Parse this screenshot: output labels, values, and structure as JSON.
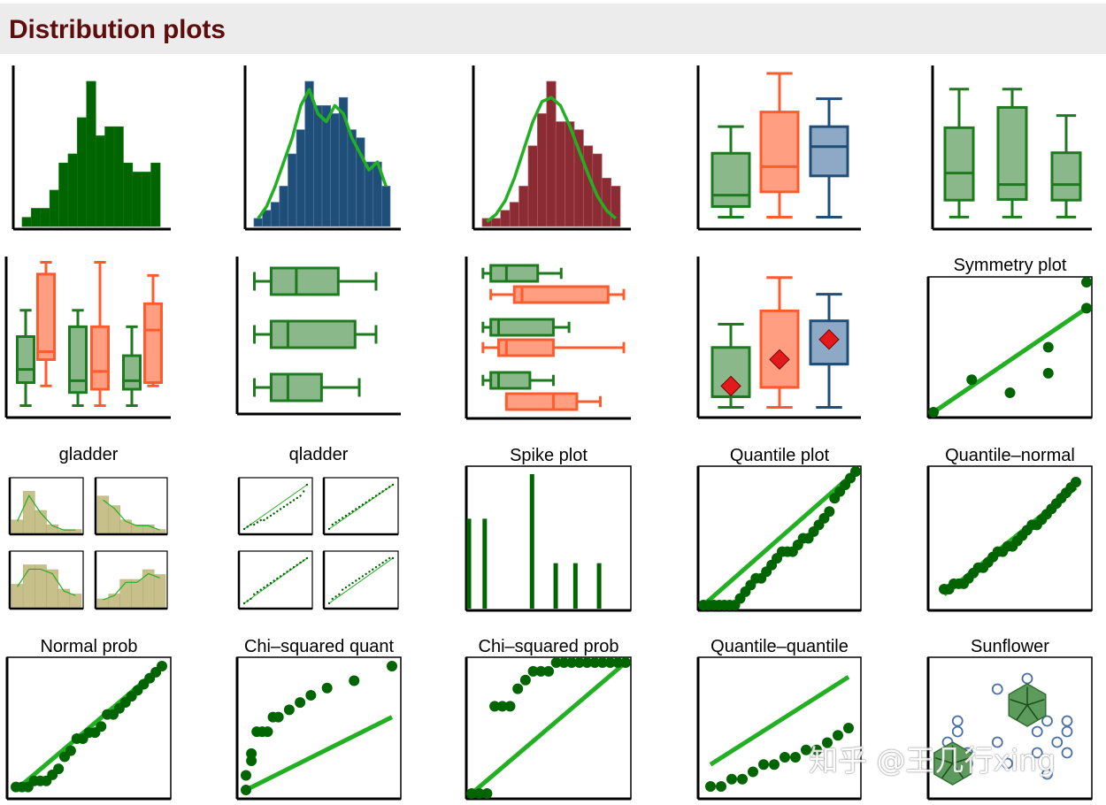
{
  "header": {
    "title": "Distribution plots"
  },
  "watermark": "知乎 @王几行xing",
  "colors": {
    "green": "#006400",
    "bright_green": "#22b022",
    "light_green": "#8ab88a",
    "orange": "#ff5c2e",
    "light_orange": "#ff9e80",
    "blue": "#2d5a87",
    "light_blue": "#8ea9c6",
    "navy": "#1f4e79",
    "maroon": "#8b2c35",
    "khaki": "#c8c08a",
    "diamond": "#e31a1c"
  },
  "chart_data": [
    {
      "id": "histogram",
      "type": "bar",
      "title": "",
      "values": [
        1,
        2,
        2,
        4,
        7,
        8,
        12,
        16,
        10,
        11,
        11,
        7,
        6,
        6,
        7
      ]
    },
    {
      "id": "histogram-kdensity",
      "type": "bar",
      "title": "",
      "values": [
        1,
        2,
        3,
        5,
        9,
        12,
        18,
        15,
        15,
        14,
        16,
        12,
        11,
        8,
        8,
        5
      ],
      "density": [
        1,
        2.5,
        5,
        8,
        11,
        15,
        17,
        14,
        13,
        15,
        14,
        11,
        9,
        7,
        8,
        5
      ]
    },
    {
      "id": "histogram-normal",
      "type": "bar",
      "title": "",
      "values": [
        1,
        1,
        2,
        3,
        5,
        10,
        14,
        18,
        13,
        13,
        12,
        10,
        9,
        6,
        5
      ],
      "density": [
        0.6,
        1.5,
        3.2,
        6,
        9.5,
        13,
        15.5,
        16,
        15,
        12.5,
        9.5,
        6.5,
        3.8,
        2,
        1
      ]
    },
    {
      "id": "box-3",
      "type": "box",
      "title": "",
      "boxes": [
        {
          "color": "green",
          "min": 1,
          "q1": 2.6,
          "med": 4.3,
          "q3": 10.6,
          "max": 14.6
        },
        {
          "color": "orange",
          "min": 1,
          "q1": 4.8,
          "med": 8.6,
          "q3": 16.8,
          "max": 22.6
        },
        {
          "color": "blue",
          "min": 1,
          "q1": 7.2,
          "med": 11.6,
          "q3": 14.6,
          "max": 18.8
        }
      ]
    },
    {
      "id": "box-3-green",
      "type": "box",
      "title": "",
      "boxes": [
        {
          "color": "green",
          "min": 1,
          "q1": 3.5,
          "med": 7.5,
          "q3": 14.2,
          "max": 19.9
        },
        {
          "color": "green",
          "min": 1,
          "q1": 3.6,
          "med": 5.8,
          "q3": 17.2,
          "max": 19.9
        },
        {
          "color": "green",
          "min": 1,
          "q1": 3.5,
          "med": 5.8,
          "q3": 10.5,
          "max": 16
        }
      ]
    },
    {
      "id": "box-grouped",
      "type": "box",
      "title": "",
      "boxes": [
        {
          "color": "green",
          "min": 1,
          "q1": 4.5,
          "med": 6.5,
          "q3": 11.5,
          "max": 15.5
        },
        {
          "color": "orange",
          "min": 4,
          "q1": 8,
          "med": 9.2,
          "q3": 21,
          "max": 22.8
        },
        {
          "color": "green",
          "min": 1,
          "q1": 3,
          "med": 4.8,
          "q3": 13,
          "max": 15.5
        },
        {
          "color": "orange",
          "min": 1,
          "q1": 3.5,
          "med": 6.2,
          "q3": 13,
          "max": 22.8
        },
        {
          "color": "green",
          "min": 1,
          "q1": 3.5,
          "med": 4.8,
          "q3": 8.6,
          "max": 13
        },
        {
          "color": "orange",
          "min": 4,
          "q1": 4.5,
          "med": 12.5,
          "q3": 16.5,
          "max": 20.8
        }
      ]
    },
    {
      "id": "hbox-3",
      "type": "box",
      "orientation": "horizontal",
      "title": "",
      "boxes": [
        {
          "color": "green",
          "min": 1,
          "q1": 3,
          "med": 6,
          "q3": 11,
          "max": 15.5
        },
        {
          "color": "green",
          "min": 1,
          "q1": 3,
          "med": 5,
          "q3": 13,
          "max": 15.5
        },
        {
          "color": "green",
          "min": 1,
          "q1": 3,
          "med": 5,
          "q3": 9,
          "max": 13.5
        }
      ]
    },
    {
      "id": "hbox-grouped",
      "type": "box",
      "orientation": "horizontal",
      "title": "",
      "boxes": [
        {
          "color": "green",
          "min": 1,
          "q1": 2,
          "med": 4,
          "q3": 8,
          "max": 11
        },
        {
          "color": "orange",
          "min": 2,
          "q1": 5,
          "med": 6,
          "q3": 17,
          "max": 19
        },
        {
          "color": "green",
          "min": 1,
          "q1": 2,
          "med": 3,
          "q3": 10,
          "max": 12
        },
        {
          "color": "orange",
          "min": 1,
          "q1": 3,
          "med": 4,
          "q3": 10,
          "max": 19
        },
        {
          "color": "green",
          "min": 1,
          "q1": 2,
          "med": 3,
          "q3": 7,
          "max": 10
        },
        {
          "color": "orange",
          "min": 4,
          "q1": 4,
          "med": 10,
          "q3": 13,
          "max": 16
        }
      ]
    },
    {
      "id": "box-means",
      "type": "box",
      "title": "",
      "boxes": [
        {
          "color": "green",
          "min": 1,
          "q1": 2.6,
          "med": 2.6,
          "q3": 10,
          "max": 13.5,
          "mean": 4.2
        },
        {
          "color": "orange",
          "min": 1,
          "q1": 4,
          "med": 4,
          "q3": 15.5,
          "max": 20.5,
          "mean": 8.2
        },
        {
          "color": "blue",
          "min": 1,
          "q1": 7.5,
          "med": 7.5,
          "q3": 14,
          "max": 18,
          "mean": 11.2
        }
      ]
    },
    {
      "id": "symmetry",
      "type": "scatter",
      "title": "Symmetry plot",
      "points": [
        [
          0,
          0
        ],
        [
          4,
          5
        ],
        [
          8,
          3
        ],
        [
          12,
          6
        ],
        [
          12,
          10
        ],
        [
          16,
          16
        ],
        [
          16,
          20
        ]
      ],
      "line": [
        [
          0,
          0
        ],
        [
          16,
          16
        ]
      ]
    },
    {
      "id": "gladder",
      "type": "bar",
      "title": "gladder",
      "panels": [
        {
          "values": [
            3,
            9,
            5,
            2,
            1,
            1
          ]
        },
        {
          "values": [
            8,
            6,
            3,
            2,
            2,
            1
          ]
        },
        {
          "values": [
            5,
            9,
            9,
            8,
            4,
            3
          ]
        },
        {
          "values": [
            2,
            3,
            6,
            6,
            8,
            7
          ]
        }
      ]
    },
    {
      "id": "qladder",
      "type": "scatter",
      "title": "qladder",
      "panels": [
        {
          "y": [
            0,
            0.5,
            1,
            1,
            1.5,
            2,
            2,
            2.5,
            3,
            3.5,
            4,
            4.5,
            5,
            5.5,
            6,
            6.5,
            7,
            7.5,
            8.5,
            10
          ]
        },
        {
          "y": [
            0,
            1,
            1.5,
            2,
            2.5,
            3,
            3.5,
            4,
            4.5,
            5,
            5.5,
            6,
            6.5,
            7,
            7.5,
            8,
            8.5,
            9,
            9.5,
            10
          ]
        },
        {
          "y": [
            0,
            0.5,
            1,
            2,
            2.5,
            3,
            3.5,
            4,
            4.5,
            5,
            5.5,
            6,
            6.5,
            7,
            7.5,
            8,
            8.5,
            9,
            9.5,
            10
          ]
        },
        {
          "y": [
            0,
            1,
            1.5,
            2,
            3,
            3.5,
            4,
            4.5,
            5,
            5.5,
            6,
            6.5,
            7,
            7.5,
            8,
            8.5,
            9,
            9.5,
            10,
            10
          ]
        }
      ]
    },
    {
      "id": "spike",
      "type": "bar",
      "title": "Spike plot",
      "x": [
        0,
        4,
        16,
        22,
        27,
        33
      ],
      "values": [
        10,
        10,
        15,
        5,
        5,
        5
      ]
    },
    {
      "id": "quantile",
      "type": "scatter",
      "title": "Quantile plot",
      "y": [
        0,
        0,
        0,
        0,
        0,
        0,
        0,
        1,
        2,
        3,
        4,
        4,
        5,
        6,
        7,
        8,
        8,
        8,
        9,
        10,
        10,
        11,
        12,
        13,
        14,
        16,
        17,
        18,
        19,
        20
      ]
    },
    {
      "id": "quantile-normal",
      "type": "scatter",
      "title": "Quantile–normal",
      "y": [
        0,
        0,
        1,
        1,
        1,
        2,
        3,
        4,
        4,
        5,
        6,
        7,
        7,
        8,
        8,
        9,
        10,
        11,
        12,
        12,
        13,
        14,
        15,
        16,
        17,
        18,
        19,
        20
      ]
    },
    {
      "id": "normal-prob",
      "type": "scatter",
      "title": "Normal prob",
      "y": [
        0,
        0,
        0,
        1,
        1,
        1,
        2,
        3,
        5,
        6,
        8,
        8,
        9,
        9,
        10,
        12,
        12,
        13,
        14,
        15,
        16,
        17,
        18,
        19,
        20
      ]
    },
    {
      "id": "chi2-quantile",
      "type": "scatter",
      "title": "Chi–squared quant",
      "points": [
        [
          0,
          0
        ],
        [
          0,
          2
        ],
        [
          1,
          4
        ],
        [
          1,
          5
        ],
        [
          2,
          8
        ],
        [
          3,
          8
        ],
        [
          4,
          8
        ],
        [
          5,
          10
        ],
        [
          6,
          10
        ],
        [
          8,
          11
        ],
        [
          10,
          12
        ],
        [
          12,
          13
        ],
        [
          15,
          14
        ],
        [
          20,
          15
        ],
        [
          27,
          17
        ]
      ],
      "line": [
        [
          0,
          0
        ],
        [
          27,
          10
        ]
      ]
    },
    {
      "id": "chi2-prob",
      "type": "scatter",
      "title": "Chi–squared prob",
      "points": [
        [
          0,
          0
        ],
        [
          1,
          0
        ],
        [
          2,
          0
        ],
        [
          3,
          10
        ],
        [
          4,
          10
        ],
        [
          5,
          10
        ],
        [
          6,
          12
        ],
        [
          7,
          13
        ],
        [
          8,
          14
        ],
        [
          9,
          14
        ],
        [
          10,
          14
        ],
        [
          11,
          15
        ],
        [
          12,
          15
        ],
        [
          13,
          15
        ],
        [
          14,
          15
        ],
        [
          15,
          15
        ],
        [
          16,
          15
        ],
        [
          17,
          15
        ],
        [
          18,
          15
        ],
        [
          19,
          15
        ],
        [
          20,
          15
        ]
      ],
      "line": [
        [
          0,
          0
        ],
        [
          20,
          15
        ]
      ]
    },
    {
      "id": "qq",
      "type": "scatter",
      "title": "Quantile–quantile",
      "points": [
        [
          0,
          0
        ],
        [
          1,
          0
        ],
        [
          2,
          1
        ],
        [
          3,
          1
        ],
        [
          4,
          2
        ],
        [
          5,
          3
        ],
        [
          6,
          3
        ],
        [
          7,
          4
        ],
        [
          8,
          4
        ],
        [
          9,
          5
        ],
        [
          10,
          5
        ],
        [
          11,
          6
        ],
        [
          12,
          7
        ],
        [
          13,
          8
        ]
      ],
      "line": [
        [
          0,
          3
        ],
        [
          13,
          15
        ]
      ]
    },
    {
      "id": "sunflower",
      "type": "scatter",
      "title": "Sunflower",
      "points": [
        [
          0,
          4
        ],
        [
          1,
          6
        ],
        [
          1,
          5
        ],
        [
          2,
          3
        ],
        [
          2,
          2
        ],
        [
          1,
          1
        ],
        [
          5,
          9
        ],
        [
          5,
          4
        ],
        [
          6,
          2
        ],
        [
          8,
          10
        ],
        [
          8,
          7
        ],
        [
          9,
          5
        ],
        [
          9,
          3
        ],
        [
          10,
          1
        ],
        [
          10,
          6
        ],
        [
          11,
          4
        ],
        [
          12,
          5
        ],
        [
          12,
          6
        ],
        [
          12,
          3
        ]
      ],
      "sunflowers": [
        [
          8,
          7.5
        ],
        [
          0.5,
          2
        ]
      ]
    }
  ]
}
